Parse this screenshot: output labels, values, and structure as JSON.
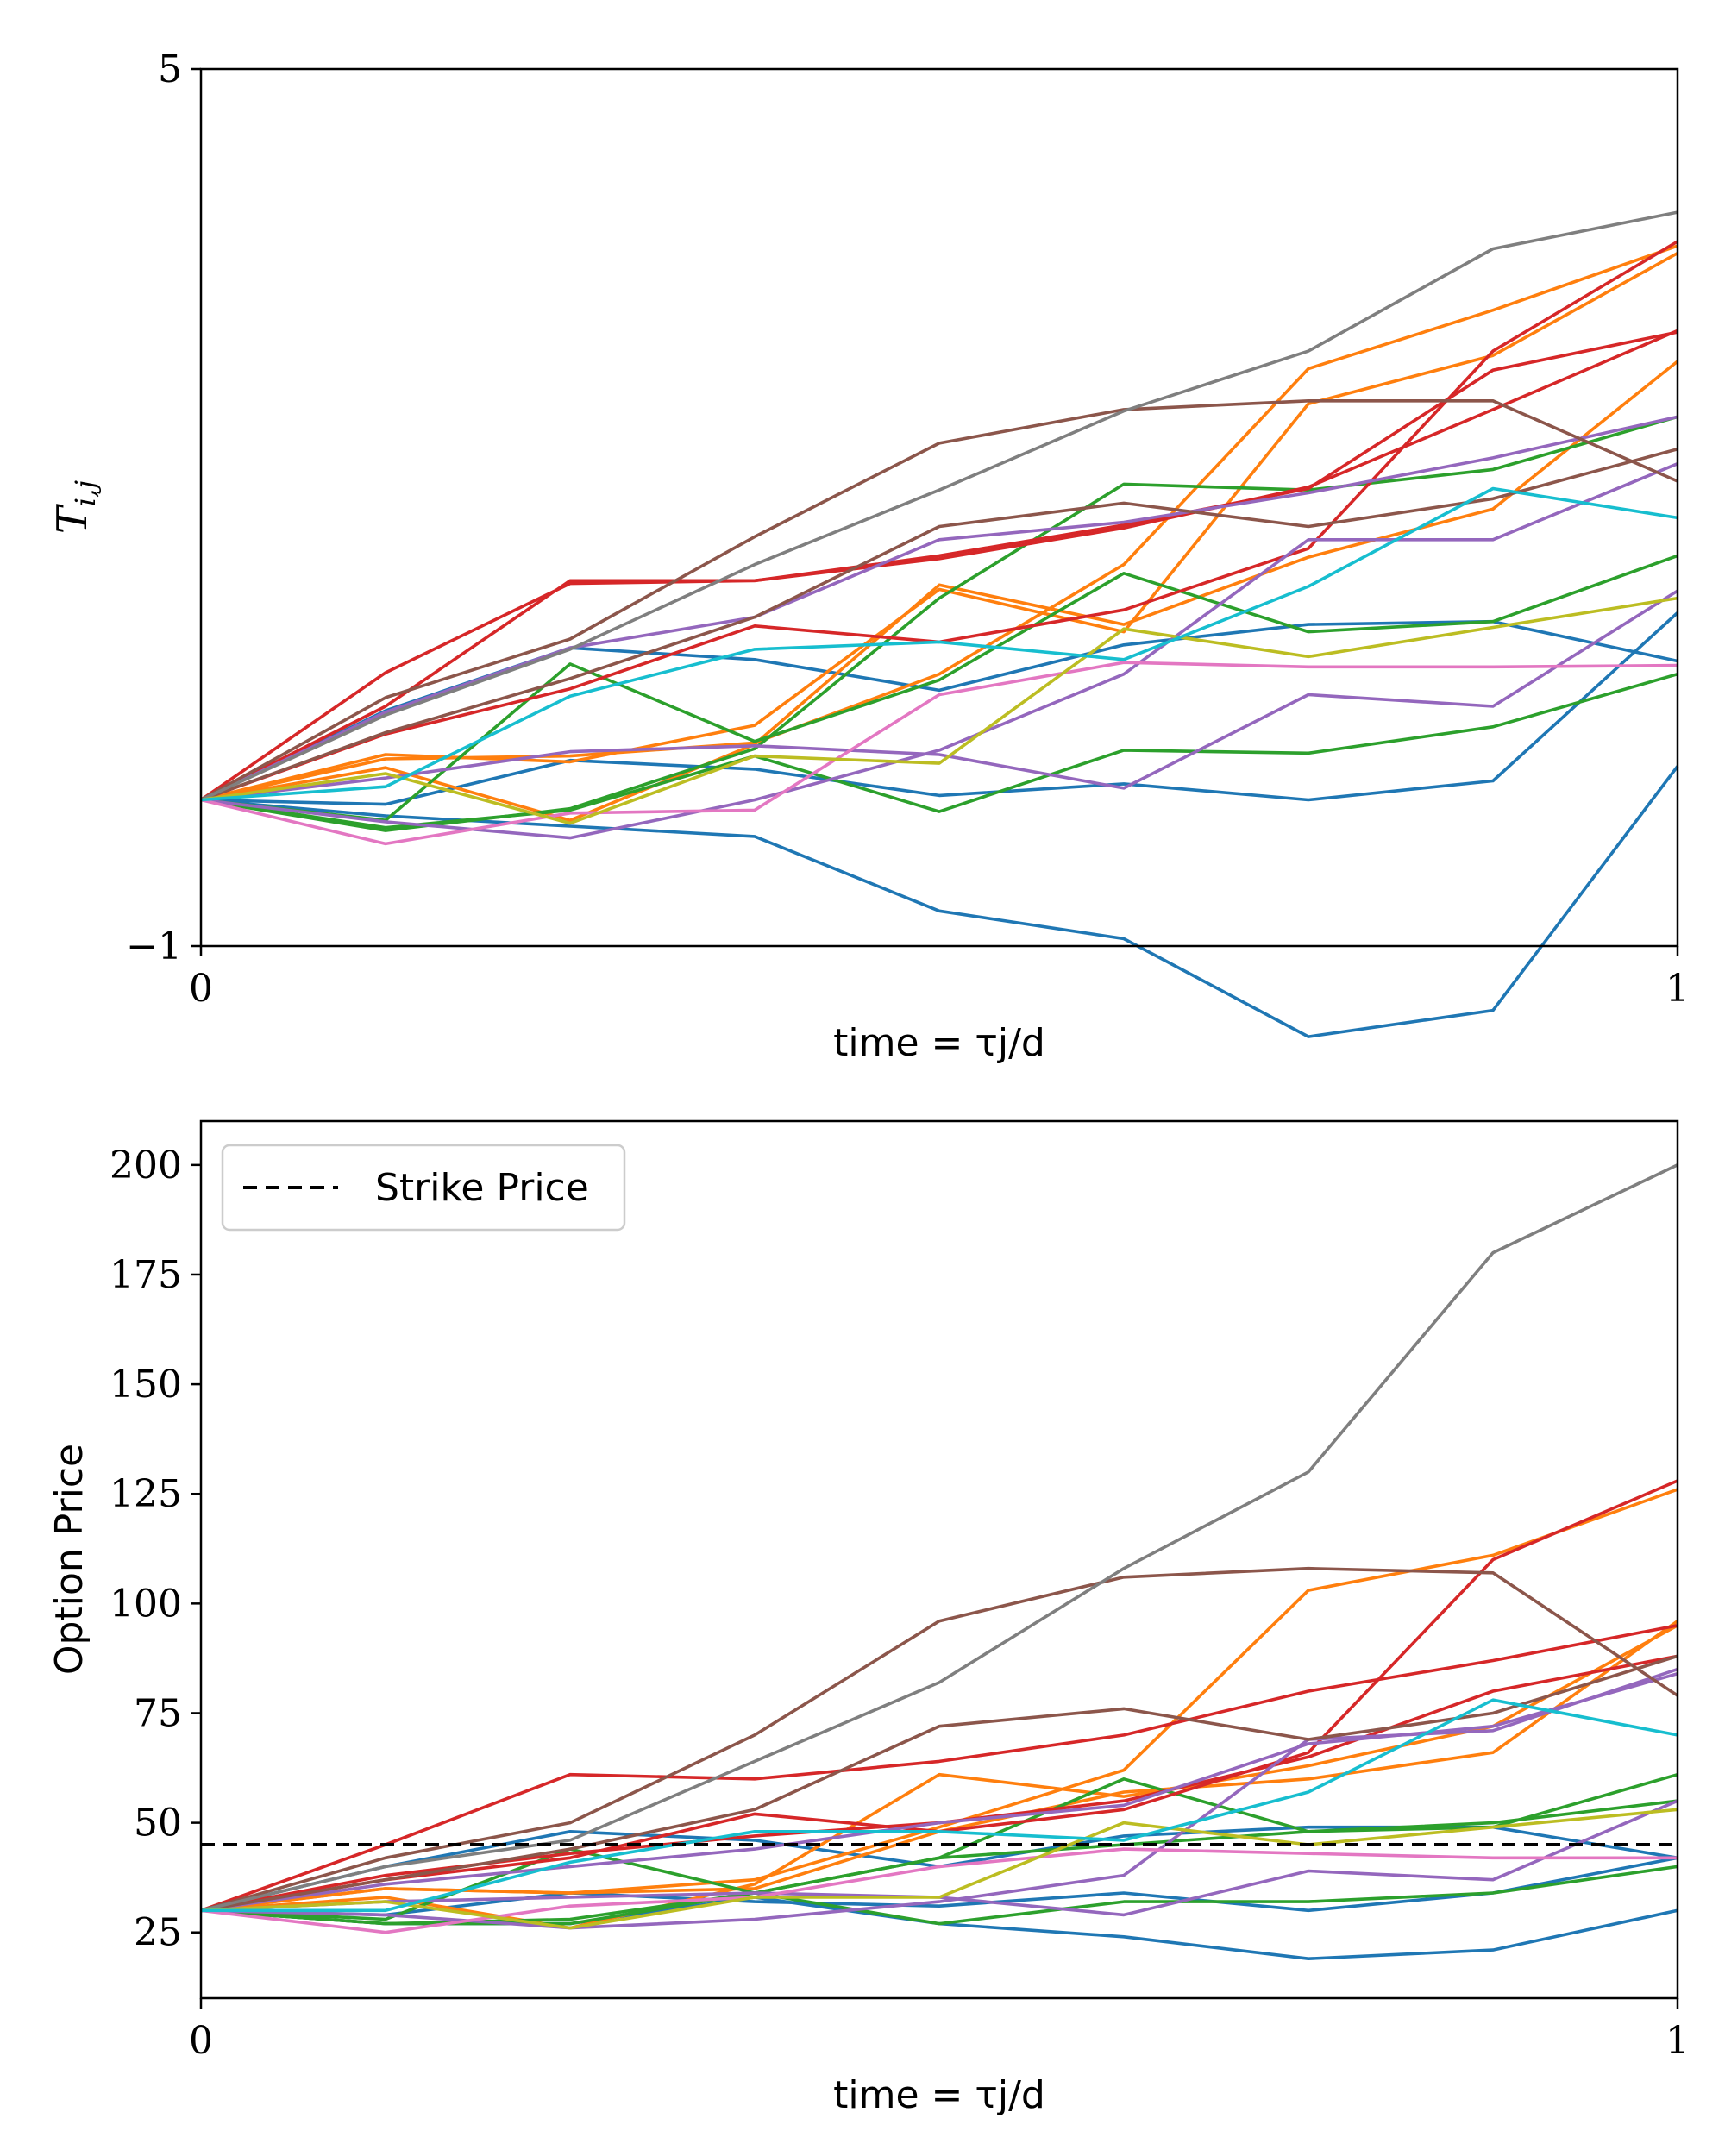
{
  "palette": [
    "#1f77b4",
    "#ff7f0e",
    "#2ca02c",
    "#d62728",
    "#9467bd",
    "#8c564b",
    "#e377c2",
    "#7f7f7f",
    "#bcbd22",
    "#17becf"
  ],
  "chart_data": [
    {
      "type": "line",
      "xlabel": "time = τj/d",
      "ylabel": "T_{i,j}",
      "ylabel_main": "T",
      "ylabel_sub": "i,j",
      "xlim": [
        0,
        1
      ],
      "ylim": [
        -1,
        5
      ],
      "xticks": [
        {
          "v": 0,
          "label": "0"
        },
        {
          "v": 1,
          "label": "1"
        }
      ],
      "yticks": [
        {
          "v": -1,
          "label": "−1"
        },
        {
          "v": 5,
          "label": "5"
        }
      ],
      "x": [
        0,
        0.125,
        0.25,
        0.375,
        0.5,
        0.625,
        0.75,
        0.875,
        1.0
      ],
      "series": [
        {
          "color": "#1f77b4",
          "values": [
            0,
            -0.03,
            0.27,
            0.21,
            0.03,
            0.11,
            0.0,
            0.13,
            1.28
          ]
        },
        {
          "color": "#1f77b4",
          "values": [
            0,
            0.61,
            1.04,
            0.96,
            0.75,
            1.06,
            1.2,
            1.22,
            0.95
          ]
        },
        {
          "color": "#1f77b4",
          "values": [
            0,
            -0.11,
            -0.18,
            -0.25,
            -0.76,
            -0.95,
            -1.62,
            -1.44,
            0.23
          ]
        },
        {
          "color": "#ff7f0e",
          "values": [
            0,
            0.31,
            0.26,
            0.51,
            1.44,
            1.15,
            2.71,
            3.04,
            3.74
          ]
        },
        {
          "color": "#ff7f0e",
          "values": [
            0,
            0.22,
            -0.14,
            0.38,
            1.47,
            1.2,
            1.66,
            1.99,
            3.0
          ]
        },
        {
          "color": "#ff7f0e",
          "values": [
            0,
            0.28,
            0.3,
            0.39,
            0.86,
            1.61,
            2.95,
            3.35,
            3.79
          ]
        },
        {
          "color": "#2ca02c",
          "values": [
            0,
            -0.14,
            0.93,
            0.4,
            0.82,
            1.55,
            1.15,
            1.22,
            1.67
          ]
        },
        {
          "color": "#2ca02c",
          "values": [
            0,
            -0.19,
            -0.07,
            0.3,
            -0.08,
            0.34,
            0.32,
            0.5,
            0.86
          ]
        },
        {
          "color": "#2ca02c",
          "values": [
            0,
            -0.21,
            -0.06,
            0.35,
            1.38,
            2.16,
            2.12,
            2.26,
            2.62
          ]
        },
        {
          "color": "#d62728",
          "values": [
            0,
            0.87,
            1.48,
            1.5,
            1.65,
            1.86,
            2.14,
            2.67,
            3.21
          ]
        },
        {
          "color": "#d62728",
          "values": [
            0,
            0.45,
            0.76,
            1.19,
            1.08,
            1.3,
            1.72,
            3.07,
            3.82
          ]
        },
        {
          "color": "#d62728",
          "values": [
            0,
            0.64,
            1.5,
            1.5,
            1.67,
            1.88,
            2.13,
            2.94,
            3.2
          ]
        },
        {
          "color": "#9467bd",
          "values": [
            0,
            -0.15,
            -0.26,
            0.0,
            0.34,
            0.86,
            1.78,
            1.78,
            2.3
          ]
        },
        {
          "color": "#9467bd",
          "values": [
            0,
            0.15,
            0.33,
            0.37,
            0.31,
            0.08,
            0.72,
            0.64,
            1.43
          ]
        },
        {
          "color": "#9467bd",
          "values": [
            0,
            0.6,
            1.04,
            1.25,
            1.78,
            1.9,
            2.1,
            2.34,
            2.62
          ]
        },
        {
          "color": "#8c564b",
          "values": [
            0,
            0.7,
            1.1,
            1.8,
            2.44,
            2.67,
            2.73,
            2.73,
            2.18
          ]
        },
        {
          "color": "#8c564b",
          "values": [
            0,
            0.46,
            0.83,
            1.25,
            1.87,
            2.03,
            1.87,
            2.06,
            2.4
          ]
        },
        {
          "color": "#e377c2",
          "values": [
            0,
            -0.3,
            -0.09,
            -0.07,
            0.72,
            0.94,
            0.91,
            0.91,
            0.92
          ]
        },
        {
          "color": "#7f7f7f",
          "values": [
            0,
            0.58,
            1.03,
            1.61,
            2.12,
            2.66,
            3.07,
            3.77,
            4.02
          ]
        },
        {
          "color": "#bcbd22",
          "values": [
            0,
            0.18,
            -0.16,
            0.3,
            0.25,
            1.17,
            0.98,
            1.18,
            1.38
          ]
        },
        {
          "color": "#17becf",
          "values": [
            0,
            0.09,
            0.71,
            1.03,
            1.08,
            0.96,
            1.46,
            2.13,
            1.93
          ]
        }
      ]
    },
    {
      "type": "line",
      "xlabel": "time = τj/d",
      "ylabel": "Option Price",
      "xlim": [
        0,
        1
      ],
      "ylim": [
        10,
        210
      ],
      "xticks": [
        {
          "v": 0,
          "label": "0"
        },
        {
          "v": 1,
          "label": "1"
        }
      ],
      "yticks": [
        {
          "v": 25,
          "label": "25"
        },
        {
          "v": 50,
          "label": "50"
        },
        {
          "v": 75,
          "label": "75"
        },
        {
          "v": 100,
          "label": "100"
        },
        {
          "v": 125,
          "label": "125"
        },
        {
          "v": 150,
          "label": "150"
        },
        {
          "v": 175,
          "label": "175"
        },
        {
          "v": 200,
          "label": "200"
        }
      ],
      "legend": {
        "position": "top-left",
        "entries": [
          {
            "label": "Strike Price",
            "style": "dashed",
            "color": "#000000"
          }
        ]
      },
      "strike": 45,
      "x": [
        0,
        0.125,
        0.25,
        0.375,
        0.5,
        0.625,
        0.75,
        0.875,
        1.0
      ],
      "series": [
        {
          "color": "#1f77b4",
          "values": [
            30,
            29,
            34,
            32,
            31,
            34,
            30,
            34,
            42
          ]
        },
        {
          "color": "#1f77b4",
          "values": [
            30,
            40,
            48,
            46,
            40,
            47,
            49,
            49,
            42
          ]
        },
        {
          "color": "#1f77b4",
          "values": [
            30,
            27,
            27,
            33,
            27,
            24,
            19,
            21,
            30
          ]
        },
        {
          "color": "#ff7f0e",
          "values": [
            30,
            35,
            34,
            37,
            49,
            62,
            103,
            111,
            126
          ]
        },
        {
          "color": "#ff7f0e",
          "values": [
            30,
            33,
            26,
            36,
            61,
            56,
            63,
            72,
            95
          ]
        },
        {
          "color": "#ff7f0e",
          "values": [
            30,
            35,
            34,
            35,
            48,
            57,
            60,
            66,
            96
          ]
        },
        {
          "color": "#2ca02c",
          "values": [
            30,
            28,
            44,
            34,
            42,
            60,
            48,
            49,
            61
          ]
        },
        {
          "color": "#2ca02c",
          "values": [
            30,
            27,
            28,
            34,
            27,
            32,
            32,
            34,
            40
          ]
        },
        {
          "color": "#2ca02c",
          "values": [
            30,
            27,
            27,
            34,
            42,
            45,
            48,
            50,
            55
          ]
        },
        {
          "color": "#d62728",
          "values": [
            30,
            45,
            61,
            60,
            64,
            70,
            80,
            87,
            95
          ]
        },
        {
          "color": "#d62728",
          "values": [
            30,
            37,
            42,
            52,
            48,
            53,
            66,
            110,
            128
          ]
        },
        {
          "color": "#d62728",
          "values": [
            30,
            38,
            43,
            47,
            50,
            55,
            65,
            80,
            88
          ]
        },
        {
          "color": "#9467bd",
          "values": [
            30,
            29,
            26,
            28,
            32,
            38,
            69,
            71,
            85
          ]
        },
        {
          "color": "#9467bd",
          "values": [
            30,
            32,
            33,
            34,
            33,
            29,
            39,
            37,
            55
          ]
        },
        {
          "color": "#9467bd",
          "values": [
            30,
            36,
            40,
            44,
            50,
            54,
            68,
            72,
            84
          ]
        },
        {
          "color": "#8c564b",
          "values": [
            30,
            42,
            50,
            70,
            96,
            106,
            108,
            107,
            79
          ]
        },
        {
          "color": "#8c564b",
          "values": [
            30,
            37,
            44,
            53,
            72,
            76,
            69,
            75,
            88
          ]
        },
        {
          "color": "#e377c2",
          "values": [
            30,
            25,
            31,
            33,
            40,
            44,
            43,
            42,
            42
          ]
        },
        {
          "color": "#7f7f7f",
          "values": [
            30,
            40,
            46,
            64,
            82,
            108,
            130,
            180,
            200
          ]
        },
        {
          "color": "#bcbd22",
          "values": [
            30,
            32,
            26,
            33,
            33,
            50,
            45,
            49,
            53
          ]
        },
        {
          "color": "#17becf",
          "values": [
            30,
            30,
            41,
            48,
            48,
            46,
            57,
            78,
            70
          ]
        }
      ]
    }
  ]
}
